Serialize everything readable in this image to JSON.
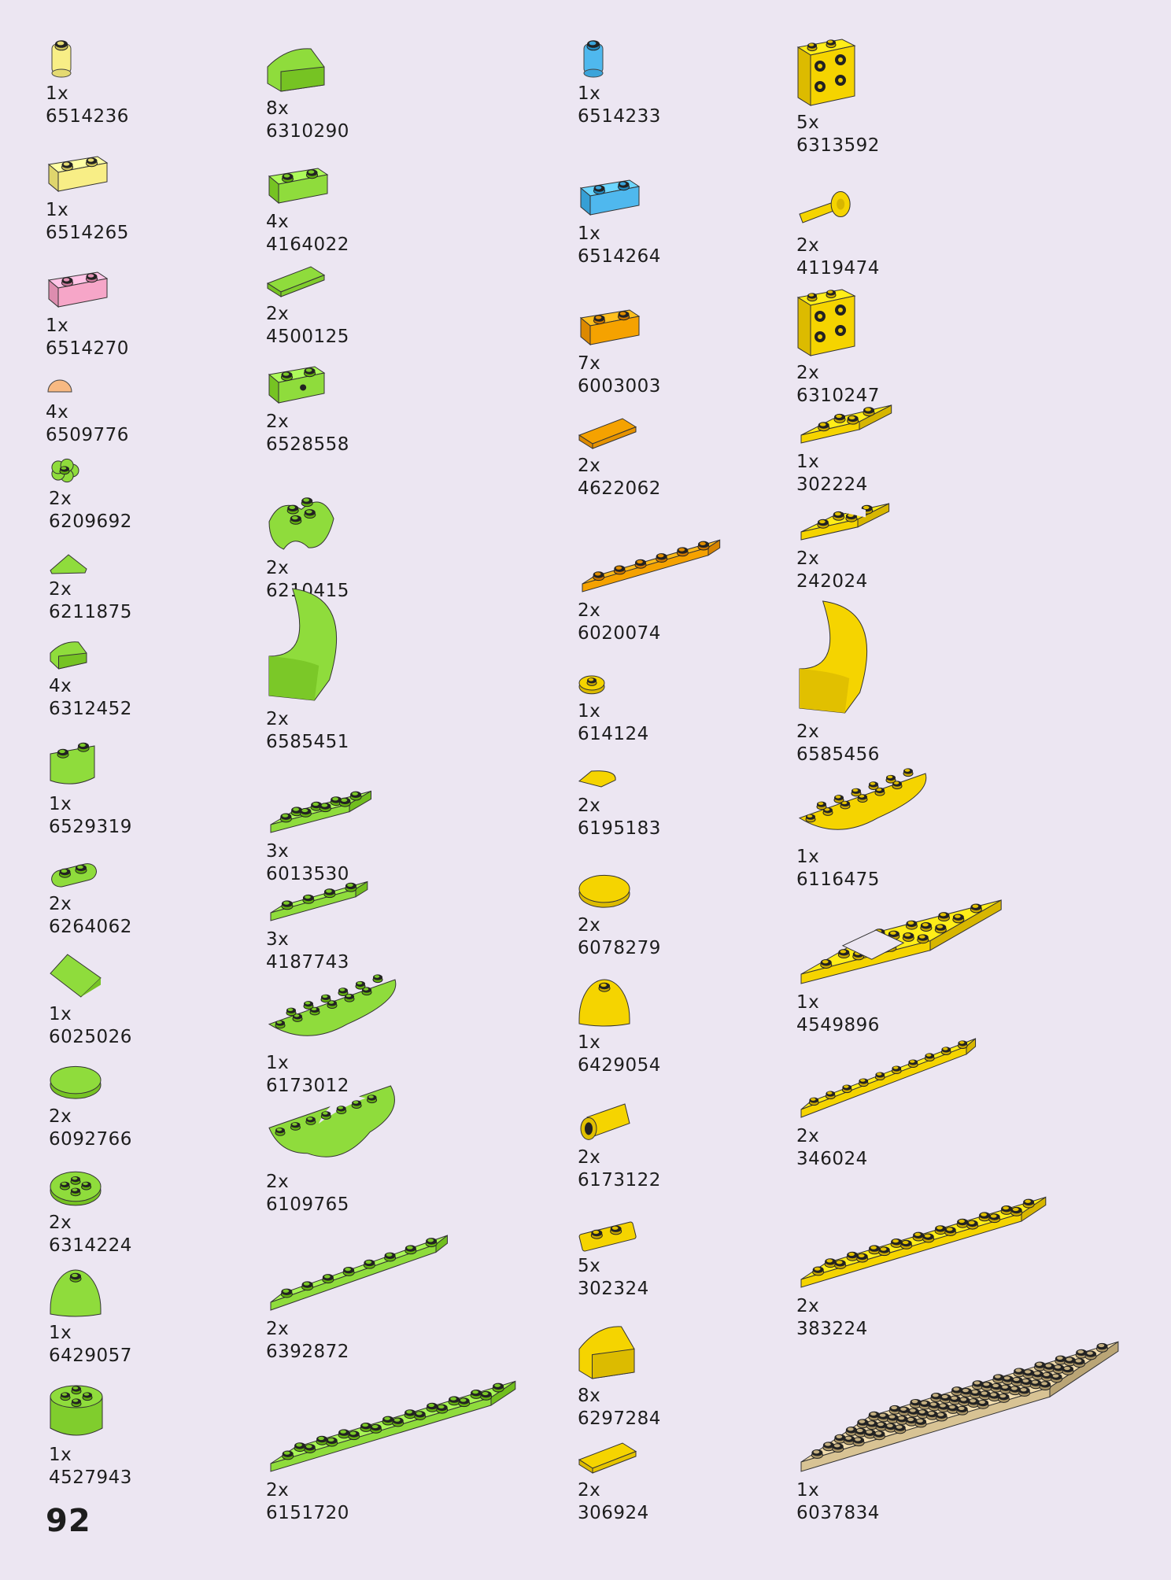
{
  "page": {
    "number": "92"
  },
  "colors": {
    "lime": "#8fdc3c",
    "yellow": "#f5d400",
    "orange": "#f5a200",
    "tan": "#d8c394",
    "trans_yellow": "#f8ee86",
    "trans_pink": "#f6a6c8",
    "trans_blue": "#4fb8ee",
    "peach": "#f8b982"
  },
  "parts": [
    {
      "qty": "1x",
      "code": "6514236",
      "shape": "round-1x1",
      "color": "trans_yellow"
    },
    {
      "qty": "1x",
      "code": "6514265",
      "shape": "brick-1x2",
      "color": "trans_yellow"
    },
    {
      "qty": "1x",
      "code": "6514270",
      "shape": "brick-1x2",
      "color": "trans_pink"
    },
    {
      "qty": "4x",
      "code": "6509776",
      "shape": "dome-small",
      "color": "peach"
    },
    {
      "qty": "2x",
      "code": "6209692",
      "shape": "flower",
      "color": "lime"
    },
    {
      "qty": "2x",
      "code": "6211875",
      "shape": "wedge-small",
      "color": "lime"
    },
    {
      "qty": "4x",
      "code": "6312452",
      "shape": "curved-slope-1x1",
      "color": "lime"
    },
    {
      "qty": "1x",
      "code": "6529319",
      "shape": "brick-curved",
      "color": "lime"
    },
    {
      "qty": "2x",
      "code": "6264062",
      "shape": "plate-1x2-round",
      "color": "lime"
    },
    {
      "qty": "1x",
      "code": "6025026",
      "shape": "slope-2x2",
      "color": "lime"
    },
    {
      "qty": "2x",
      "code": "6092766",
      "shape": "round-tile-2x2",
      "color": "lime"
    },
    {
      "qty": "2x",
      "code": "6314224",
      "shape": "round-plate-2x2",
      "color": "lime"
    },
    {
      "qty": "1x",
      "code": "6429057",
      "shape": "dome-2x2",
      "color": "lime"
    },
    {
      "qty": "1x",
      "code": "4527943",
      "shape": "round-brick-2x2",
      "color": "lime"
    },
    {
      "qty": "8x",
      "code": "6310290",
      "shape": "curved-slope-1x2",
      "color": "lime"
    },
    {
      "qty": "4x",
      "code": "4164022",
      "shape": "brick-1x2",
      "color": "lime"
    },
    {
      "qty": "2x",
      "code": "4500125",
      "shape": "tile-1x2",
      "color": "lime"
    },
    {
      "qty": "2x",
      "code": "6528558",
      "shape": "brick-1x2-hole",
      "color": "lime"
    },
    {
      "qty": "2x",
      "code": "6210415",
      "shape": "leaves",
      "color": "lime"
    },
    {
      "qty": "2x",
      "code": "6585451",
      "shape": "arch-curve",
      "color": "lime"
    },
    {
      "qty": "3x",
      "code": "6013530",
      "shape": "plate-2x4",
      "color": "lime"
    },
    {
      "qty": "3x",
      "code": "4187743",
      "shape": "plate-1x4",
      "color": "lime"
    },
    {
      "qty": "1x",
      "code": "6173012",
      "shape": "half-round-plate",
      "color": "lime"
    },
    {
      "qty": "2x",
      "code": "6109765",
      "shape": "plate-cutout",
      "color": "lime"
    },
    {
      "qty": "2x",
      "code": "6392872",
      "shape": "plate-1x8",
      "color": "lime"
    },
    {
      "qty": "2x",
      "code": "6151720",
      "shape": "plate-2x10",
      "color": "lime"
    },
    {
      "qty": "1x",
      "code": "6514233",
      "shape": "round-1x1",
      "color": "trans_blue"
    },
    {
      "qty": "1x",
      "code": "6514264",
      "shape": "brick-1x2",
      "color": "trans_blue"
    },
    {
      "qty": "7x",
      "code": "6003003",
      "shape": "brick-1x2",
      "color": "orange"
    },
    {
      "qty": "2x",
      "code": "4622062",
      "shape": "tile-1x2",
      "color": "orange"
    },
    {
      "qty": "2x",
      "code": "6020074",
      "shape": "plate-1x6",
      "color": "orange"
    },
    {
      "qty": "1x",
      "code": "614124",
      "shape": "round-plate-1x1",
      "color": "yellow"
    },
    {
      "qty": "2x",
      "code": "6195183",
      "shape": "quarter-tile",
      "color": "yellow"
    },
    {
      "qty": "2x",
      "code": "6078279",
      "shape": "round-tile-2x2",
      "color": "yellow"
    },
    {
      "qty": "1x",
      "code": "6429054",
      "shape": "dome-2x2",
      "color": "yellow"
    },
    {
      "qty": "2x",
      "code": "6173122",
      "shape": "cylinder",
      "color": "yellow"
    },
    {
      "qty": "5x",
      "code": "302324",
      "shape": "plate-1x2",
      "color": "yellow"
    },
    {
      "qty": "8x",
      "code": "6297284",
      "shape": "curved-slope-2x2",
      "color": "yellow"
    },
    {
      "qty": "2x",
      "code": "306924",
      "shape": "tile-1x2",
      "color": "yellow"
    },
    {
      "qty": "5x",
      "code": "6313592",
      "shape": "brick-studs-side",
      "color": "yellow"
    },
    {
      "qty": "2x",
      "code": "4119474",
      "shape": "pin-axle",
      "color": "yellow"
    },
    {
      "qty": "2x",
      "code": "6310247",
      "shape": "brick-studs-side",
      "color": "yellow"
    },
    {
      "qty": "1x",
      "code": "302224",
      "shape": "plate-2x2",
      "color": "yellow"
    },
    {
      "qty": "2x",
      "code": "242024",
      "shape": "corner-plate",
      "color": "yellow"
    },
    {
      "qty": "2x",
      "code": "6585456",
      "shape": "arch-curve",
      "color": "yellow"
    },
    {
      "qty": "1x",
      "code": "6116475",
      "shape": "half-round-plate",
      "color": "yellow"
    },
    {
      "qty": "1x",
      "code": "4549896",
      "shape": "frame-plate",
      "color": "yellow"
    },
    {
      "qty": "2x",
      "code": "346024",
      "shape": "plate-1x10",
      "color": "yellow"
    },
    {
      "qty": "2x",
      "code": "383224",
      "shape": "plate-2x10",
      "color": "yellow"
    },
    {
      "qty": "1x",
      "code": "6037834",
      "shape": "plate-6x12",
      "color": "tan"
    }
  ]
}
